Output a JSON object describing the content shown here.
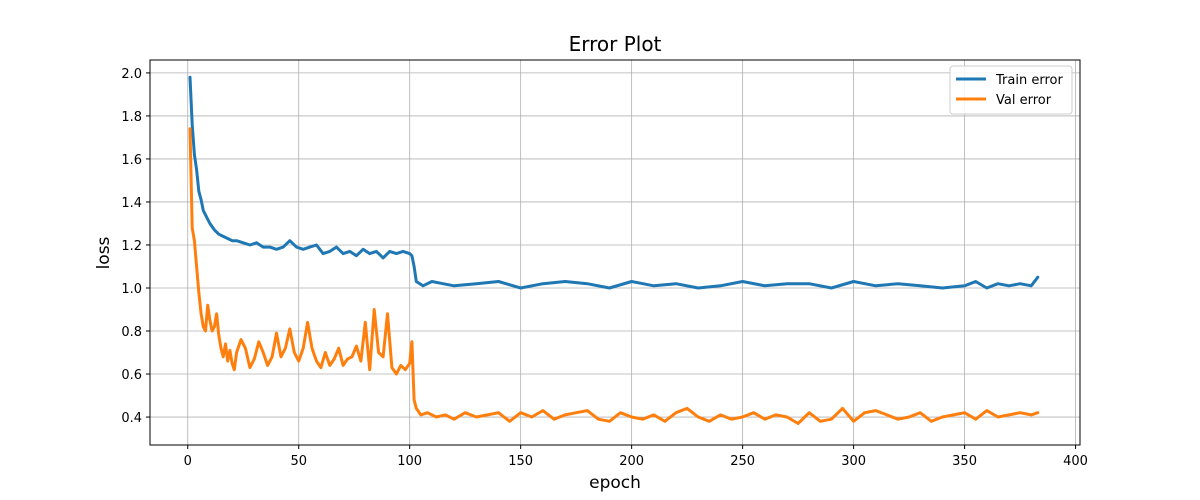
{
  "chart_data": {
    "type": "line",
    "title": "Error Plot",
    "xlabel": "epoch",
    "ylabel": "loss",
    "xlim": [
      -17,
      402
    ],
    "ylim": [
      0.27,
      2.06
    ],
    "xticks": [
      0,
      50,
      100,
      150,
      200,
      250,
      300,
      350,
      400
    ],
    "yticks": [
      0.4,
      0.6,
      0.8,
      1.0,
      1.2,
      1.4,
      1.6,
      1.8,
      2.0
    ],
    "grid": true,
    "legend_position": "top-right",
    "series": [
      {
        "name": "Train error",
        "color": "#1f77b4",
        "x": [
          1,
          2,
          3,
          4,
          5,
          6,
          7,
          8,
          10,
          12,
          14,
          16,
          18,
          20,
          22,
          25,
          28,
          31,
          34,
          37,
          40,
          43,
          46,
          49,
          52,
          55,
          58,
          61,
          64,
          67,
          70,
          73,
          76,
          79,
          82,
          85,
          88,
          91,
          94,
          97,
          100,
          101,
          102,
          103,
          106,
          110,
          115,
          120,
          130,
          140,
          150,
          160,
          170,
          180,
          190,
          200,
          210,
          220,
          230,
          240,
          250,
          260,
          270,
          280,
          290,
          300,
          310,
          320,
          330,
          340,
          350,
          355,
          360,
          365,
          370,
          375,
          380,
          383
        ],
        "y": [
          1.98,
          1.76,
          1.62,
          1.55,
          1.45,
          1.41,
          1.36,
          1.34,
          1.3,
          1.27,
          1.25,
          1.24,
          1.23,
          1.22,
          1.22,
          1.21,
          1.2,
          1.21,
          1.19,
          1.19,
          1.18,
          1.19,
          1.22,
          1.19,
          1.18,
          1.19,
          1.2,
          1.16,
          1.17,
          1.19,
          1.16,
          1.17,
          1.15,
          1.18,
          1.16,
          1.17,
          1.14,
          1.17,
          1.16,
          1.17,
          1.16,
          1.15,
          1.1,
          1.03,
          1.01,
          1.03,
          1.02,
          1.01,
          1.02,
          1.03,
          1.0,
          1.02,
          1.03,
          1.02,
          1.0,
          1.03,
          1.01,
          1.02,
          1.0,
          1.01,
          1.03,
          1.01,
          1.02,
          1.02,
          1.0,
          1.03,
          1.01,
          1.02,
          1.01,
          1.0,
          1.01,
          1.03,
          1.0,
          1.02,
          1.01,
          1.02,
          1.01,
          1.05
        ]
      },
      {
        "name": "Val error",
        "color": "#ff7f0e",
        "x": [
          1,
          2,
          3,
          4,
          5,
          6,
          7,
          8,
          9,
          10,
          11,
          12,
          13,
          14,
          15,
          16,
          17,
          18,
          19,
          20,
          21,
          22,
          24,
          26,
          28,
          30,
          32,
          34,
          36,
          38,
          40,
          42,
          44,
          46,
          48,
          50,
          52,
          54,
          56,
          58,
          60,
          62,
          64,
          66,
          68,
          70,
          72,
          74,
          76,
          78,
          80,
          82,
          84,
          86,
          88,
          90,
          92,
          94,
          96,
          98,
          100,
          101,
          102,
          103,
          105,
          108,
          112,
          116,
          120,
          125,
          130,
          135,
          140,
          145,
          150,
          155,
          160,
          165,
          170,
          175,
          180,
          185,
          190,
          195,
          200,
          205,
          210,
          215,
          220,
          225,
          230,
          235,
          240,
          245,
          250,
          255,
          260,
          265,
          270,
          275,
          280,
          285,
          290,
          295,
          300,
          305,
          310,
          315,
          320,
          325,
          330,
          335,
          340,
          345,
          350,
          355,
          360,
          365,
          370,
          375,
          380,
          383
        ],
        "y": [
          1.74,
          1.28,
          1.22,
          1.1,
          0.98,
          0.88,
          0.82,
          0.8,
          0.92,
          0.85,
          0.8,
          0.82,
          0.88,
          0.78,
          0.72,
          0.68,
          0.74,
          0.66,
          0.71,
          0.65,
          0.62,
          0.7,
          0.76,
          0.72,
          0.63,
          0.67,
          0.75,
          0.7,
          0.64,
          0.68,
          0.79,
          0.68,
          0.72,
          0.81,
          0.7,
          0.66,
          0.72,
          0.84,
          0.72,
          0.66,
          0.63,
          0.7,
          0.64,
          0.67,
          0.72,
          0.64,
          0.67,
          0.68,
          0.73,
          0.66,
          0.84,
          0.62,
          0.9,
          0.7,
          0.68,
          0.88,
          0.63,
          0.6,
          0.64,
          0.62,
          0.65,
          0.75,
          0.48,
          0.44,
          0.41,
          0.42,
          0.4,
          0.41,
          0.39,
          0.42,
          0.4,
          0.41,
          0.42,
          0.38,
          0.42,
          0.4,
          0.43,
          0.39,
          0.41,
          0.42,
          0.43,
          0.39,
          0.38,
          0.42,
          0.4,
          0.39,
          0.41,
          0.38,
          0.42,
          0.44,
          0.4,
          0.38,
          0.41,
          0.39,
          0.4,
          0.42,
          0.39,
          0.41,
          0.4,
          0.37,
          0.42,
          0.38,
          0.39,
          0.44,
          0.38,
          0.42,
          0.43,
          0.41,
          0.39,
          0.4,
          0.42,
          0.38,
          0.4,
          0.41,
          0.42,
          0.39,
          0.43,
          0.4,
          0.41,
          0.42,
          0.41,
          0.42
        ]
      }
    ]
  }
}
